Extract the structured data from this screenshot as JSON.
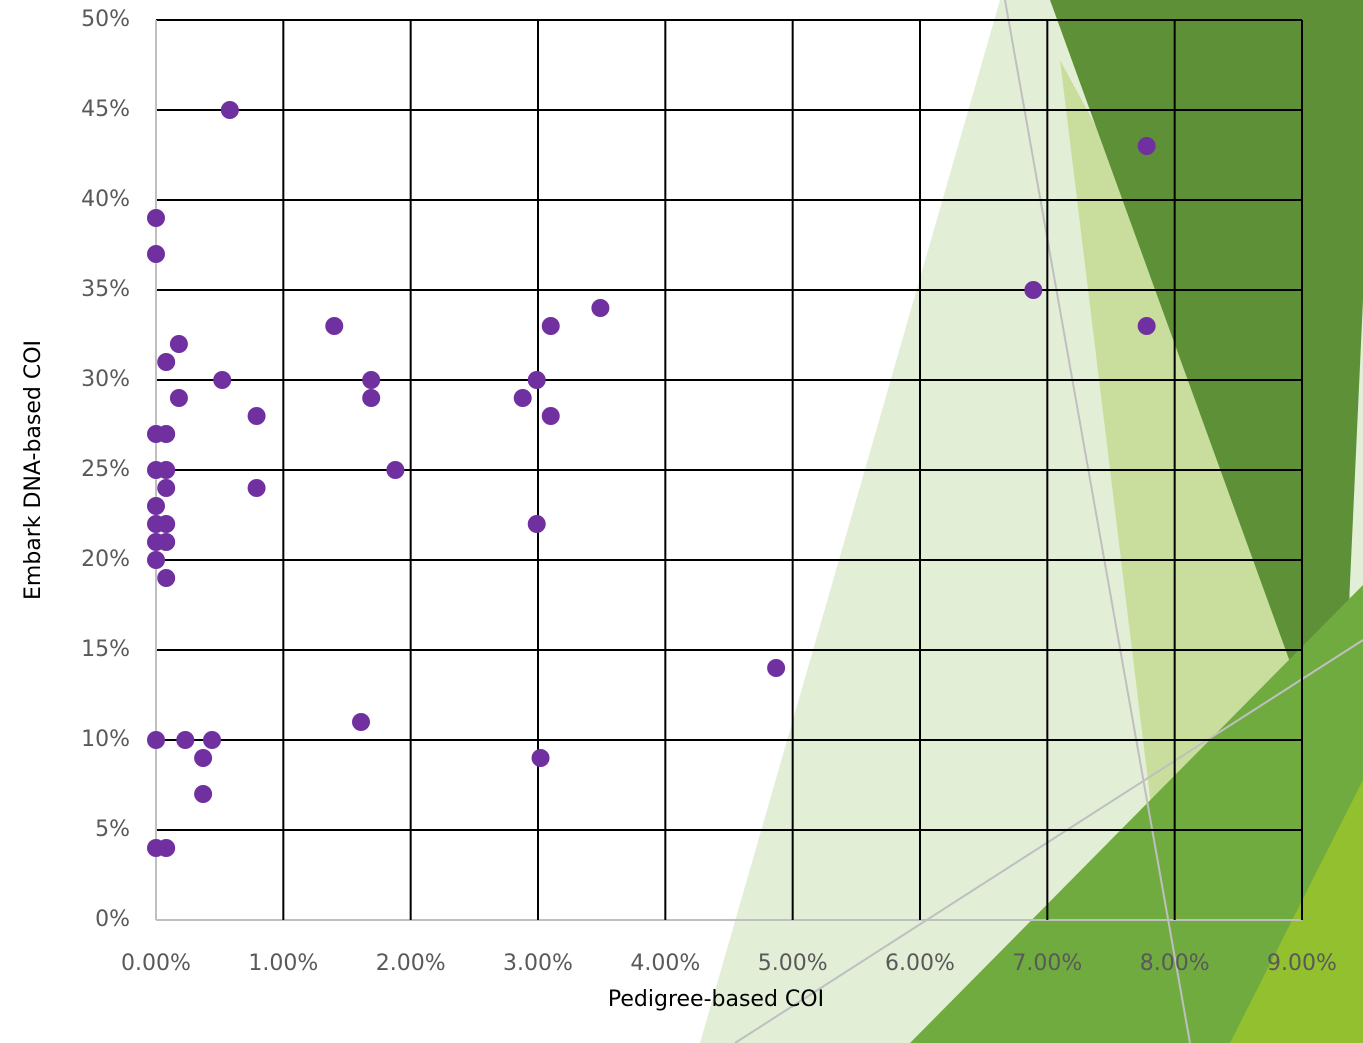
{
  "chart_data": {
    "type": "scatter",
    "x_label": "Pedigree-based COI",
    "y_label": "Embark DNA-based COI",
    "color": "#7030a0",
    "grid": true,
    "xlim": [
      0,
      9
    ],
    "ylim": [
      0,
      50
    ],
    "xticks": [
      {
        "value": 0,
        "label": "0.00%"
      },
      {
        "value": 1,
        "label": "1.00%"
      },
      {
        "value": 2,
        "label": "2.00%"
      },
      {
        "value": 3,
        "label": "3.00%"
      },
      {
        "value": 4,
        "label": "4.00%"
      },
      {
        "value": 5,
        "label": "5.00%"
      },
      {
        "value": 6,
        "label": "6.00%"
      },
      {
        "value": 7,
        "label": "7.00%"
      },
      {
        "value": 8,
        "label": "8.00%"
      },
      {
        "value": 9,
        "label": "9.00%"
      }
    ],
    "yticks": [
      {
        "value": 0,
        "label": "0%"
      },
      {
        "value": 5,
        "label": "5%"
      },
      {
        "value": 10,
        "label": "10%"
      },
      {
        "value": 15,
        "label": "15%"
      },
      {
        "value": 20,
        "label": "20%"
      },
      {
        "value": 25,
        "label": "25%"
      },
      {
        "value": 30,
        "label": "30%"
      },
      {
        "value": 35,
        "label": "35%"
      },
      {
        "value": 40,
        "label": "40%"
      },
      {
        "value": 45,
        "label": "45%"
      },
      {
        "value": 50,
        "label": "50%"
      }
    ],
    "x": [
      0.58,
      7.78,
      0,
      0,
      6.89,
      3.49,
      1.4,
      3.1,
      7.78,
      0.18,
      0.08,
      0.52,
      1.69,
      2.99,
      0.18,
      1.69,
      2.88,
      0.79,
      3.1,
      0,
      0.08,
      0,
      0.08,
      1.88,
      0.08,
      0.79,
      0,
      0,
      0.08,
      2.99,
      0,
      0.08,
      0,
      0.08,
      4.87,
      1.61,
      0,
      0.23,
      0.44,
      0.37,
      3.02,
      0.37,
      0,
      0.08
    ],
    "values": [
      45,
      43,
      39,
      37,
      35,
      34,
      33,
      33,
      33,
      32,
      31,
      30,
      30,
      30,
      29,
      29,
      29,
      28,
      28,
      27,
      27,
      25,
      25,
      25,
      24,
      24,
      23,
      22,
      22,
      22,
      21,
      21,
      20,
      19,
      14,
      11,
      10,
      10,
      10,
      9,
      9,
      7,
      4,
      4
    ]
  }
}
